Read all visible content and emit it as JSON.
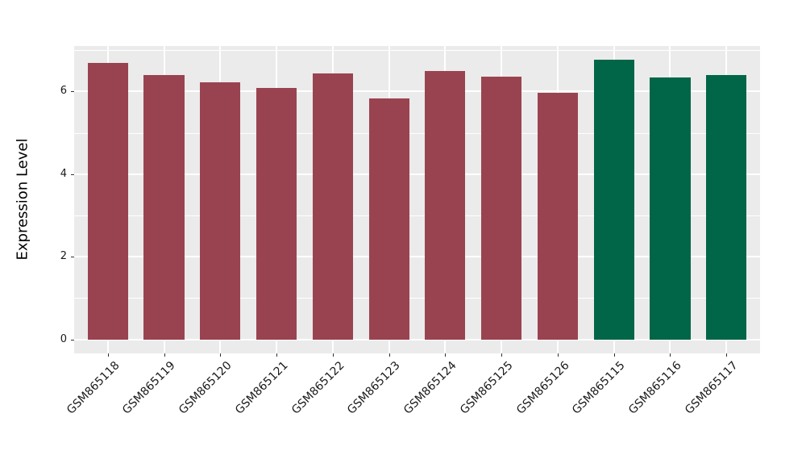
{
  "chart_data": {
    "type": "bar",
    "title": "",
    "ylabel": "Expression Level",
    "xlabel": "",
    "categories": [
      "GSM865118",
      "GSM865119",
      "GSM865120",
      "GSM865121",
      "GSM865122",
      "GSM865123",
      "GSM865124",
      "GSM865125",
      "GSM865126",
      "GSM865115",
      "GSM865116",
      "GSM865117"
    ],
    "values": [
      6.69,
      6.4,
      6.22,
      6.08,
      6.44,
      5.84,
      6.49,
      6.36,
      5.96,
      6.77,
      6.34,
      6.39
    ],
    "bar_colors": [
      "#9A4350",
      "#9A4350",
      "#9A4350",
      "#9A4350",
      "#9A4350",
      "#9A4350",
      "#9A4350",
      "#9A4350",
      "#9A4350",
      "#006647",
      "#006647",
      "#006647"
    ],
    "yticks": [
      0,
      2,
      4,
      6
    ],
    "minor_yticks": [
      1,
      3,
      5,
      7
    ],
    "ylim": [
      -0.34,
      7.1
    ],
    "grid": "on",
    "legend_position": "none",
    "x_tick_rotation_deg": 45,
    "colors": {
      "panel_bg": "#EBEBEB",
      "grid": "#FFFFFF",
      "tick_mark": "#333333",
      "tick_text": "#1A1A1A",
      "bar_red": "#9A4350",
      "bar_green": "#006647"
    }
  }
}
